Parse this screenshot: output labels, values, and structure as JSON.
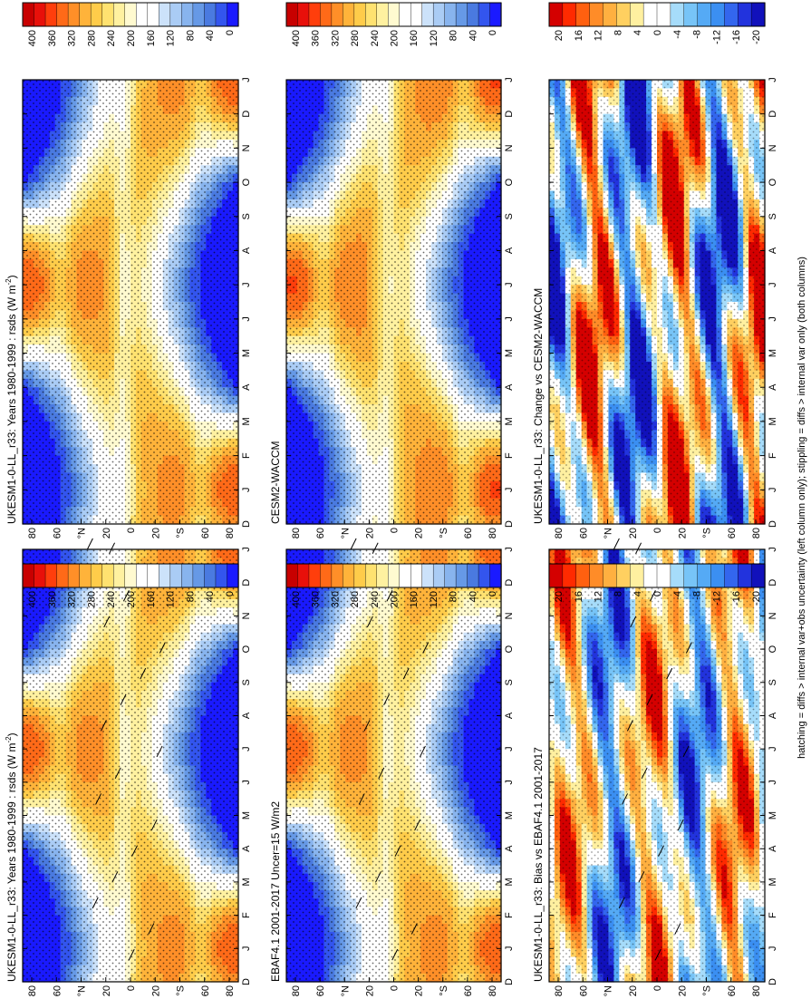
{
  "figure": {
    "caption": "hatching = diffs > internal var+obs uncertainty (left column only); stippling = diffs > internal var only (both columns)",
    "colors": {
      "abs_scale": [
        "#1a1aff",
        "#3355ee",
        "#4a7ae0",
        "#6699e6",
        "#88b4ee",
        "#aaccf5",
        "#cce2fa",
        "#ffffff",
        "#ffffff",
        "#fffad0",
        "#fff1a0",
        "#ffe270",
        "#ffcc4a",
        "#ffb33a",
        "#ff8f28",
        "#ff6a18",
        "#ff3e0c",
        "#e8100a",
        "#c80000"
      ],
      "diff_scale": [
        "#1111bb",
        "#2233dd",
        "#3366ee",
        "#3b8ff2",
        "#55aaf5",
        "#77c4f7",
        "#a6dcfa",
        "#ffffff",
        "#ffffff",
        "#fff0a0",
        "#ffd060",
        "#ffb040",
        "#ff8c28",
        "#ff6010",
        "#ff2a00",
        "#d40000"
      ]
    }
  },
  "months": [
    "D",
    "J",
    "F",
    "M",
    "A",
    "M",
    "J",
    "J",
    "A",
    "S",
    "O",
    "N",
    "D",
    "J"
  ],
  "lat_ticks": [
    "80",
    "60",
    "°N",
    "20",
    "0",
    "20",
    "°S",
    "60",
    "80"
  ],
  "panels": [
    {
      "id": "ukesm-left",
      "title": "UKESM1-0-LL_r33: Years 1980-1999 : rsds (W m",
      "sup": "-2",
      "title_end": ")",
      "kind": "abs",
      "hatch": true,
      "stipple": 0.85
    },
    {
      "id": "ebaf",
      "title": "EBAF4.1 2001-2017 Uncer=15 W/m2",
      "sup": "",
      "title_end": "",
      "kind": "abs",
      "hatch": true,
      "stipple": 0.85
    },
    {
      "id": "bias",
      "title": "UKESM1-0-LL_r33: Bias vs EBAF4.1 2001-2017",
      "sup": "",
      "title_end": "",
      "kind": "bias",
      "hatch": true,
      "stipple": 0.55
    },
    {
      "id": "ukesm-right",
      "title": "UKESM1-0-LL_r33: Years 1980-1999 : rsds (W m",
      "sup": "-2",
      "title_end": ")",
      "kind": "abs",
      "hatch": false,
      "stipple": 0.85
    },
    {
      "id": "cesm",
      "title": "CESM2-WACCM",
      "sup": "",
      "title_end": "",
      "kind": "abs",
      "hatch": false,
      "stipple": 0.85
    },
    {
      "id": "change",
      "title": "UKESM1-0-LL_r33: Change vs CESM2-WACCM",
      "sup": "",
      "title_end": "",
      "kind": "change",
      "hatch": false,
      "stipple": 0.55
    }
  ],
  "colorbars": [
    {
      "id": "cb-abs-1",
      "labels": [
        "400",
        "360",
        "320",
        "280",
        "240",
        "200",
        "160",
        "120",
        "80",
        "40",
        "0"
      ]
    },
    {
      "id": "cb-abs-2",
      "labels": [
        "400",
        "360",
        "320",
        "280",
        "240",
        "200",
        "160",
        "120",
        "80",
        "40",
        "0"
      ]
    },
    {
      "id": "cb-diff-1",
      "labels": [
        "20",
        "16",
        "12",
        "8",
        "4",
        "0",
        "-4",
        "-8",
        "-12",
        "-16",
        "-20"
      ]
    },
    {
      "id": "cb-abs-3",
      "labels": [
        "400",
        "360",
        "320",
        "280",
        "240",
        "200",
        "160",
        "120",
        "80",
        "40",
        "0"
      ]
    },
    {
      "id": "cb-abs-4",
      "labels": [
        "400",
        "360",
        "320",
        "280",
        "240",
        "200",
        "160",
        "120",
        "80",
        "40",
        "0"
      ]
    },
    {
      "id": "cb-diff-2",
      "labels": [
        "20",
        "16",
        "12",
        "8",
        "4",
        "0",
        "-4",
        "-8",
        "-12",
        "-16",
        "-20"
      ]
    }
  ],
  "chart_data": {
    "type": "heatmap",
    "variable": "rsds",
    "units": "W m-2",
    "x": [
      "D",
      "J",
      "F",
      "M",
      "A",
      "M",
      "J",
      "J",
      "A",
      "S",
      "O",
      "N",
      "D",
      "J"
    ],
    "y": [
      "80",
      "60",
      "°N",
      "20",
      "0",
      "20",
      "°S",
      "60",
      "80"
    ],
    "abs_range": [
      0,
      400
    ],
    "diff_range": [
      -20,
      20
    ],
    "panels": [
      "UKESM1-0-LL_r33: Years 1980-1999 : rsds (W m-2)",
      "EBAF4.1 2001-2017 Uncer=15 W/m2",
      "UKESM1-0-LL_r33: Bias vs EBAF4.1 2001-2017",
      "UKESM1-0-LL_r33: Years 1980-1999 : rsds (W m-2)",
      "CESM2-WACCM",
      "UKESM1-0-LL_r33: Change vs CESM2-WACCM"
    ]
  }
}
